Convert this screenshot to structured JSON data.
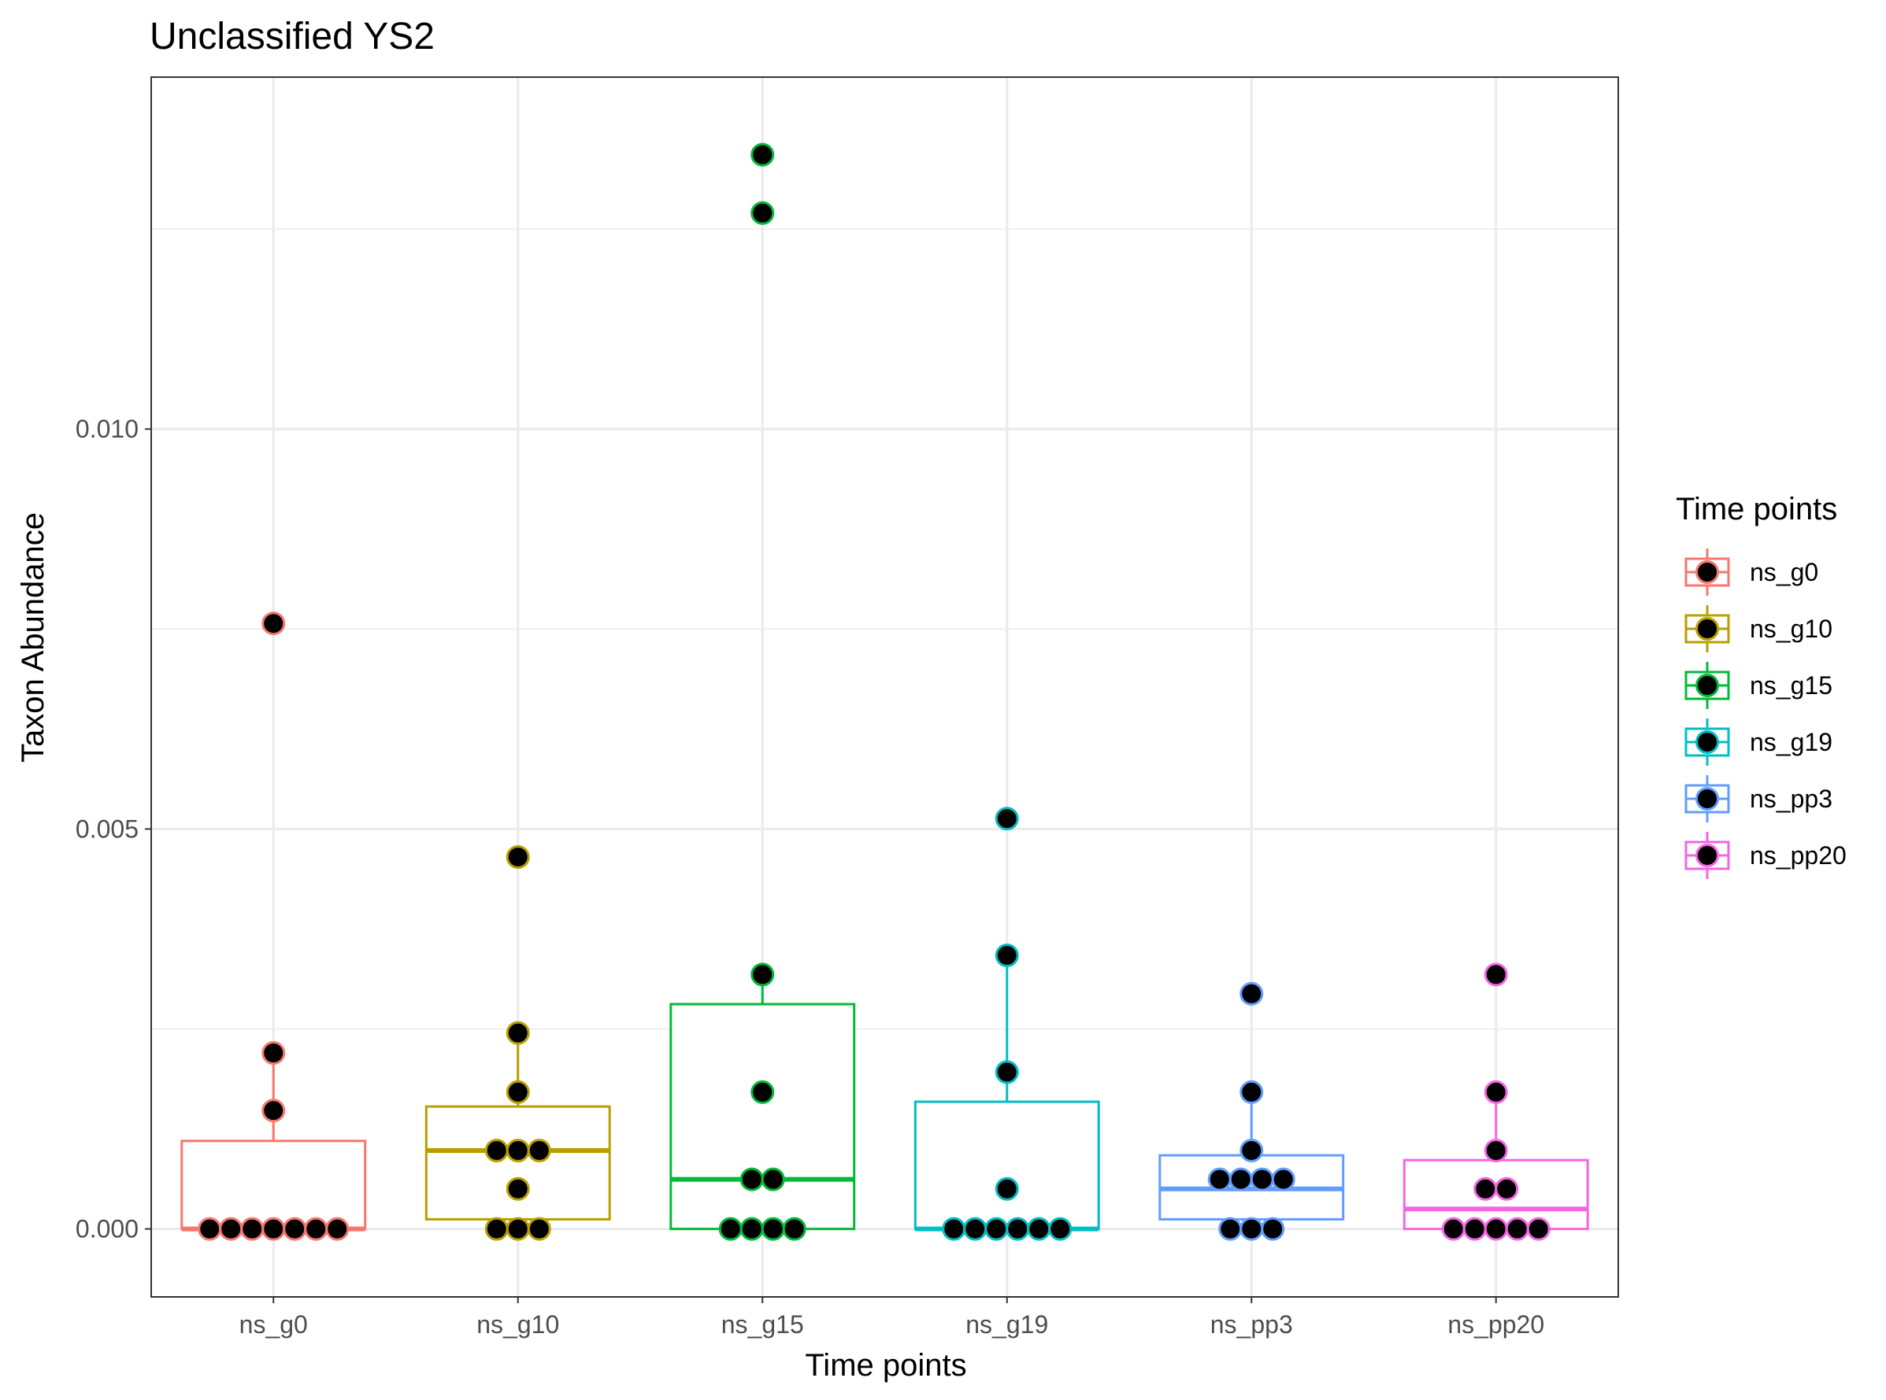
{
  "chart_data": {
    "type": "box",
    "title": "Unclassified YS2",
    "xlabel": "Time points",
    "ylabel": "Taxon Abundance",
    "ylim": [
      -0.00085,
      0.0144
    ],
    "yticks": [
      0.0,
      0.005,
      0.01
    ],
    "ytick_labels": [
      "0.000",
      "0.005",
      "0.010"
    ],
    "grid": true,
    "legend": {
      "title": "Time points",
      "position": "right"
    },
    "categories": [
      "ns_g0",
      "ns_g10",
      "ns_g15",
      "ns_g19",
      "ns_pp3",
      "ns_pp20"
    ],
    "colors": [
      "#F8766D",
      "#B79F00",
      "#00BA38",
      "#00BFC4",
      "#619CFF",
      "#F564E3"
    ],
    "boxes": [
      {
        "name": "ns_g0",
        "q1": 0.0,
        "median": 0.0,
        "q3": 0.0011,
        "whisker_low": 0.0,
        "whisker_high": 0.0022
      },
      {
        "name": "ns_g10",
        "q1": 0.00012,
        "median": 0.00098,
        "q3": 0.00153,
        "whisker_low": 0.0,
        "whisker_high": 0.00245
      },
      {
        "name": "ns_g15",
        "q1": 0.0,
        "median": 0.00062,
        "q3": 0.00281,
        "whisker_low": 0.0,
        "whisker_high": 0.00318
      },
      {
        "name": "ns_g19",
        "q1": 0.0,
        "median": 0.0,
        "q3": 0.00159,
        "whisker_low": 0.0,
        "whisker_high": 0.00342
      },
      {
        "name": "ns_pp3",
        "q1": 0.00012,
        "median": 0.0005,
        "q3": 0.00092,
        "whisker_low": 0.0,
        "whisker_high": 0.00171
      },
      {
        "name": "ns_pp20",
        "q1": 0.0,
        "median": 0.00025,
        "q3": 0.00086,
        "whisker_low": 0.0,
        "whisker_high": 0.00171
      }
    ],
    "points": [
      {
        "series": "ns_g0",
        "values": [
          0,
          0,
          0,
          0,
          0,
          0,
          0,
          0.00148,
          0.0022,
          0.00757
        ]
      },
      {
        "series": "ns_g10",
        "values": [
          0,
          0,
          0,
          0.0005,
          0.00098,
          0.00098,
          0.00098,
          0.00171,
          0.00245,
          0.00465
        ]
      },
      {
        "series": "ns_g15",
        "values": [
          0,
          0,
          0,
          0,
          0.00062,
          0.00062,
          0.00171,
          0.00318,
          0.0127,
          0.01343
        ]
      },
      {
        "series": "ns_g19",
        "values": [
          0,
          0,
          0,
          0,
          0,
          0,
          0.0005,
          0.00196,
          0.00342,
          0.00513
        ]
      },
      {
        "series": "ns_pp3",
        "values": [
          0,
          0,
          0,
          0.00062,
          0.00062,
          0.00062,
          0.00062,
          0.00098,
          0.00171,
          0.00294
        ]
      },
      {
        "series": "ns_pp20",
        "values": [
          0,
          0,
          0,
          0,
          0,
          0.0005,
          0.0005,
          0.00098,
          0.00171,
          0.00318
        ]
      }
    ]
  }
}
